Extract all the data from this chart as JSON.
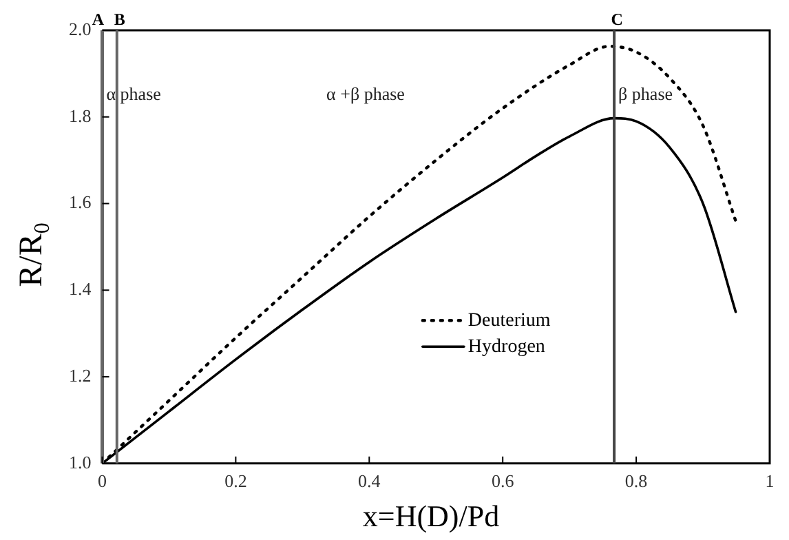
{
  "chart_data": {
    "type": "line",
    "xlabel": "x=H(D)/Pd",
    "ylabel": "R/R$_{0}$",
    "xlim": [
      0,
      1
    ],
    "xticks": [
      0,
      0.2,
      0.4,
      0.6,
      0.8,
      1
    ],
    "ylim": [
      1,
      2
    ],
    "yticks": [
      {
        "value": 1,
        "label": "1.0"
      },
      {
        "value": 1.2,
        "label": "1.2"
      },
      {
        "value": 1.4,
        "label": "1.4"
      },
      {
        "value": 1.6,
        "label": "1.6"
      },
      {
        "value": 1.8,
        "label": "1.8"
      },
      {
        "value": 2,
        "label": "2.0"
      }
    ],
    "grid": false,
    "legend": "bottom right",
    "marker": "none",
    "series": [
      {
        "name": "Deuterium",
        "color": "#000000",
        "line_style": "dotted",
        "x": [
          0,
          0.1,
          0.2,
          0.3,
          0.4,
          0.5,
          0.6,
          0.7,
          0.76,
          0.8,
          0.85,
          0.9,
          0.949
        ],
        "values": [
          1,
          1.145,
          1.29,
          1.43,
          1.57,
          1.7,
          1.82,
          1.92,
          1.963,
          1.95,
          1.89,
          1.78,
          1.56
        ]
      },
      {
        "name": "Hydrogen",
        "color": "#000000",
        "line_style": "solid",
        "x": [
          0,
          0.1,
          0.2,
          0.3,
          0.4,
          0.5,
          0.6,
          0.65,
          0.7,
          0.767,
          0.8,
          0.85,
          0.9,
          0.949
        ],
        "values": [
          1,
          1.12,
          1.24,
          1.355,
          1.465,
          1.565,
          1.66,
          1.71,
          1.755,
          1.797,
          1.79,
          1.73,
          1.6,
          1.35
        ]
      }
    ],
    "ref_lines": [
      {
        "axis": "x",
        "value": 0.022,
        "label": "B",
        "color": "#666666"
      },
      {
        "axis": "x",
        "value": 0.767,
        "label": "C",
        "color": "#444444"
      }
    ],
    "annotations": [
      "A",
      "α phase",
      "α +β phase",
      "β phase"
    ]
  }
}
